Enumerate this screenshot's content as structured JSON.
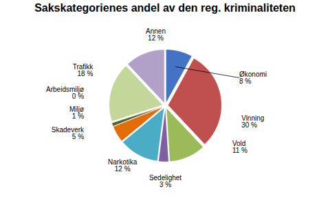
{
  "chart_data": {
    "type": "pie",
    "title": "Sakskategorienes andel av den reg. kriminaliteten",
    "categories": [
      "Økonomi",
      "Vinning",
      "Vold",
      "Sedelighet",
      "Narkotika",
      "Skadeverk",
      "Miljø",
      "Arbeidsmiljø",
      "Trafikk",
      "Annen"
    ],
    "values": [
      8,
      30,
      11,
      3,
      12,
      5,
      1,
      0,
      18,
      12
    ],
    "value_labels": [
      "8 %",
      "30 %",
      "11 %",
      "3 %",
      "12 %",
      "5 %",
      "1 %",
      "0 %",
      "18 %",
      "12 %"
    ],
    "colors": [
      "#4472C4",
      "#C0504D",
      "#9BBB59",
      "#7F5FA2",
      "#4BACC6",
      "#E36C09",
      "#4F6228",
      "#17375E",
      "#C4D79B",
      "#B1A0C7"
    ],
    "data_labels": true
  }
}
